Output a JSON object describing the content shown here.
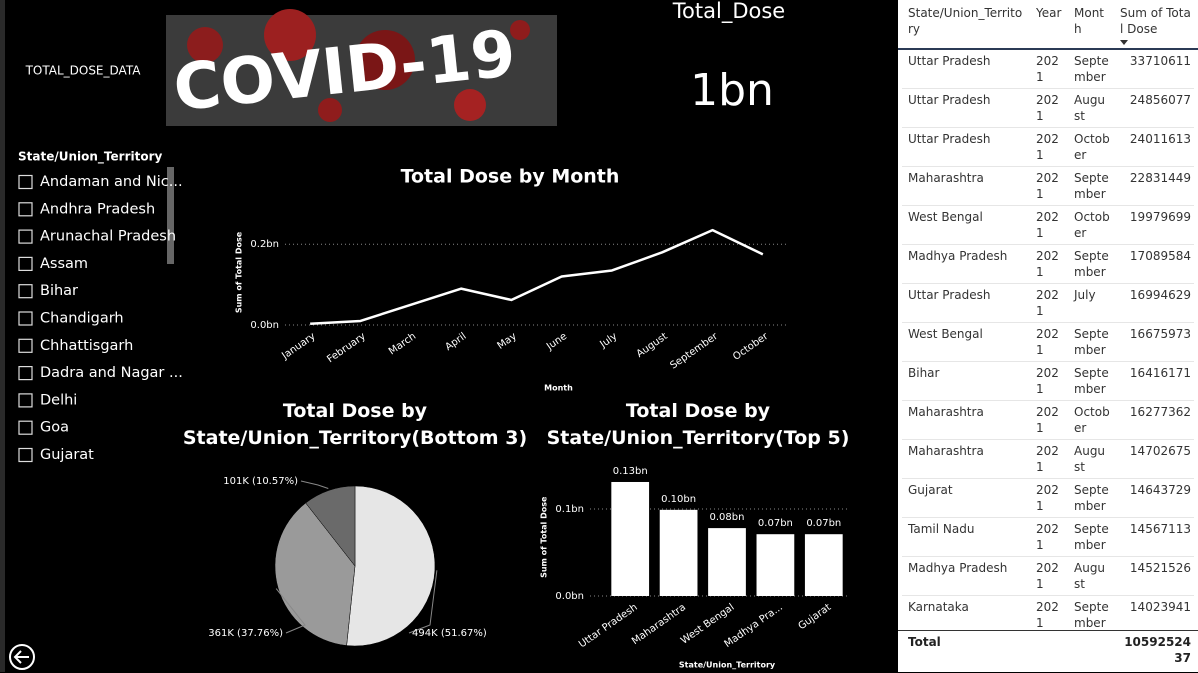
{
  "report_label": "TOTAL_DOSE_DATA",
  "banner_text": "COVID-19",
  "card": {
    "title": "Total_Dose",
    "value": "1bn"
  },
  "slicer": {
    "title": "State/Union_Territory",
    "items": [
      "Andaman and Nic...",
      "Andhra Pradesh",
      "Arunachal Pradesh",
      "Assam",
      "Bihar",
      "Chandigarh",
      "Chhattisgarh",
      "Dadra and Nagar ...",
      "Delhi",
      "Goa",
      "Gujarat"
    ]
  },
  "chart_data": [
    {
      "type": "line",
      "title": "Total Dose by Month",
      "x_label": "Month",
      "y_label": "Sum of Total Dose",
      "categories": [
        "January",
        "February",
        "March",
        "April",
        "May",
        "June",
        "July",
        "August",
        "September",
        "October"
      ],
      "values": [
        3000000,
        10000000,
        50000000,
        90000000,
        62000000,
        120000000,
        135000000,
        180000000,
        235000000,
        175000000
      ],
      "color": "#ffffff",
      "ylim": [
        0,
        260000000
      ],
      "yticks": [
        {
          "value": 0,
          "label": "0.0bn"
        },
        {
          "value": 200000000,
          "label": "0.2bn"
        }
      ],
      "grid": true
    },
    {
      "type": "pie",
      "title": "Total Dose by State/Union_Territory(Bottom 3)",
      "values": [
        494000,
        361000,
        101000
      ],
      "value_labels": [
        "494K (51.67%)",
        "361K (37.76%)",
        "101K (10.57%)"
      ],
      "colors": [
        "#e6e6e6",
        "#9a9a9a",
        "#6a6a6a"
      ]
    },
    {
      "type": "bar",
      "title": "Total Dose by State/Union_Territory(Top 5)",
      "x_label": "State/Union_Territory",
      "y_label": "Sum of Total Dose",
      "categories": [
        "Uttar Pradesh",
        "Maharashtra",
        "West Bengal",
        "Madhya Pra...",
        "Gujarat"
      ],
      "values": [
        131000000,
        99000000,
        78000000,
        71000000,
        71000000
      ],
      "value_labels": [
        "0.13bn",
        "0.10bn",
        "0.08bn",
        "0.07bn",
        "0.07bn"
      ],
      "color": "#ffffff",
      "ylim": [
        0,
        135000000
      ],
      "yticks": [
        {
          "value": 0,
          "label": "0.0bn"
        },
        {
          "value": 100000000,
          "label": "0.1bn"
        }
      ],
      "grid": true
    }
  ],
  "table": {
    "columns": [
      "State/Union_Territory",
      "Year",
      "Month",
      "Sum of Total Dose"
    ],
    "rows": [
      [
        "Uttar Pradesh",
        2021,
        "September",
        33710611
      ],
      [
        "Uttar Pradesh",
        2021,
        "August",
        24856077
      ],
      [
        "Uttar Pradesh",
        2021,
        "October",
        24011613
      ],
      [
        "Maharashtra",
        2021,
        "September",
        22831449
      ],
      [
        "West Bengal",
        2021,
        "October",
        19979699
      ],
      [
        "Madhya Pradesh",
        2021,
        "September",
        17089584
      ],
      [
        "Uttar Pradesh",
        2021,
        "July",
        16994629
      ],
      [
        "West Bengal",
        2021,
        "September",
        16675973
      ],
      [
        "Bihar",
        2021,
        "September",
        16416171
      ],
      [
        "Maharashtra",
        2021,
        "October",
        16277362
      ],
      [
        "Maharashtra",
        2021,
        "August",
        14702675
      ],
      [
        "Gujarat",
        2021,
        "September",
        14643729
      ],
      [
        "Tamil Nadu",
        2021,
        "September",
        14567113
      ],
      [
        "Madhya Pradesh",
        2021,
        "August",
        14521526
      ],
      [
        "Karnataka",
        2021,
        "September",
        14023941
      ]
    ],
    "total": [
      "Total",
      1059252437
    ]
  }
}
